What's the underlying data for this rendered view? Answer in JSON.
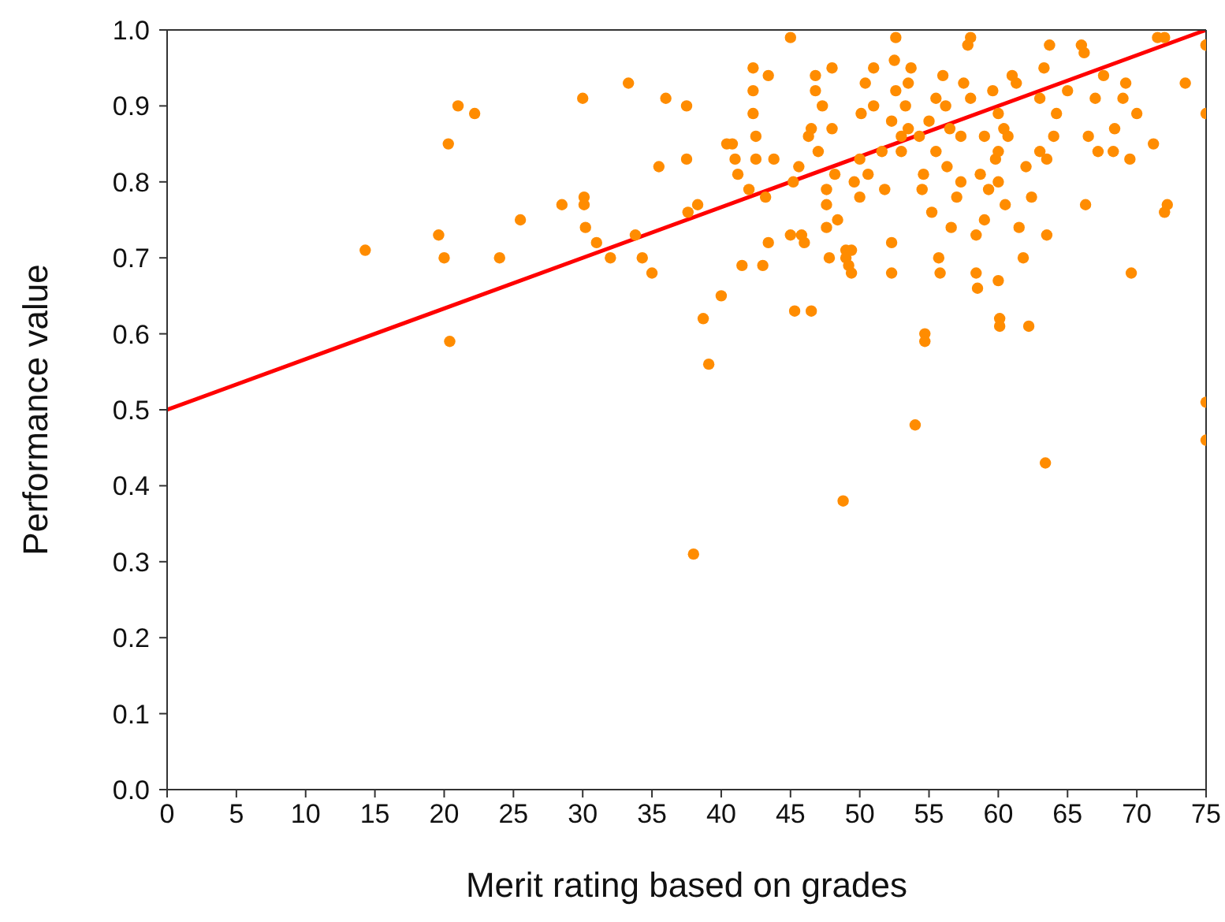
{
  "chart_data": {
    "type": "scatter",
    "xlabel": "Merit rating based on grades",
    "ylabel": "Performance value",
    "xlim": [
      0,
      75
    ],
    "ylim": [
      0,
      1
    ],
    "xticks": [
      0,
      5,
      10,
      15,
      20,
      25,
      30,
      35,
      40,
      45,
      50,
      55,
      60,
      65,
      70,
      75
    ],
    "yticks": [
      {
        "value": 0,
        "label": "0.0"
      },
      0.1,
      0.2,
      0.3,
      0.4,
      0.5,
      0.6,
      0.7,
      0.8,
      0.9,
      {
        "value": 1,
        "label": "1.0"
      }
    ],
    "grid": false,
    "legend": false,
    "marker": "circle",
    "series": [
      {
        "color": "#ff8c00",
        "x": [
          14.3,
          19.6,
          20,
          20.3,
          20.4,
          21,
          22.2,
          24,
          25.5,
          28.5,
          30,
          30.1,
          30.1,
          30.2,
          31,
          32,
          33.3,
          33.8,
          34.3,
          35,
          35.5,
          36,
          37.5,
          37.5,
          37.6,
          38,
          38.3,
          38.7,
          39.1,
          40,
          40.4,
          40.8,
          41,
          41.5,
          41.2,
          42,
          42.3,
          42.3,
          42.3,
          42.5,
          42.5,
          43,
          43.2,
          43.4,
          43.4,
          43.8,
          45,
          45,
          45.2,
          45.3,
          45.6,
          45.8,
          46,
          46.3,
          46.5,
          46.5,
          46.8,
          46.8,
          47,
          47.3,
          47.6,
          47.6,
          47.6,
          47.8,
          48,
          48,
          48.2,
          48.4,
          48.8,
          49,
          49,
          49.2,
          49.4,
          49.4,
          49.6,
          50,
          50,
          50.1,
          50.4,
          50.6,
          51,
          51,
          51.6,
          51.8,
          52.3,
          52.3,
          52.3,
          52.5,
          52.6,
          52.6,
          53,
          53,
          53.3,
          53.5,
          53.5,
          53.7,
          54,
          54.3,
          54.5,
          54.6,
          54.7,
          54.7,
          55,
          55.2,
          55.5,
          55.5,
          55.7,
          55.8,
          56,
          56.2,
          56.3,
          56.5,
          56.6,
          57,
          57.3,
          57.3,
          57.5,
          57.8,
          58,
          58,
          58.4,
          58.4,
          58.5,
          58.7,
          59,
          59,
          59.3,
          59.6,
          59.8,
          60,
          60,
          60,
          60,
          60.1,
          60.1,
          60.4,
          60.5,
          60.7,
          61,
          61.3,
          61.5,
          61.8,
          62,
          62.2,
          62.4,
          63,
          63,
          63.3,
          63.4,
          63.5,
          63.5,
          63.7,
          64,
          64.2,
          65,
          66,
          66.2,
          66.3,
          66.5,
          67,
          67.2,
          67.6,
          68.3,
          68.4,
          69,
          69.2,
          69.5,
          69.6,
          70,
          71.2,
          71.5,
          72,
          72,
          72.2,
          73.5,
          75,
          75,
          75,
          75,
          75
        ],
        "values": [
          0.71,
          0.73,
          0.7,
          0.85,
          0.59,
          0.9,
          0.89,
          0.7,
          0.75,
          0.77,
          0.91,
          0.78,
          0.77,
          0.74,
          0.72,
          0.7,
          0.93,
          0.73,
          0.7,
          0.68,
          0.82,
          0.91,
          0.9,
          0.83,
          0.76,
          0.31,
          0.77,
          0.62,
          0.56,
          0.65,
          0.85,
          0.85,
          0.83,
          0.69,
          0.81,
          0.79,
          0.95,
          0.92,
          0.89,
          0.86,
          0.83,
          0.69,
          0.78,
          0.72,
          0.94,
          0.83,
          0.99,
          0.73,
          0.8,
          0.63,
          0.82,
          0.73,
          0.72,
          0.86,
          0.63,
          0.87,
          0.92,
          0.94,
          0.84,
          0.9,
          0.79,
          0.77,
          0.74,
          0.7,
          0.95,
          0.87,
          0.81,
          0.75,
          0.38,
          0.71,
          0.7,
          0.69,
          0.71,
          0.68,
          0.8,
          0.83,
          0.78,
          0.89,
          0.93,
          0.81,
          0.9,
          0.95,
          0.84,
          0.79,
          0.88,
          0.72,
          0.68,
          0.96,
          0.92,
          0.99,
          0.84,
          0.86,
          0.9,
          0.93,
          0.87,
          0.95,
          0.48,
          0.86,
          0.79,
          0.81,
          0.6,
          0.59,
          0.88,
          0.76,
          0.84,
          0.91,
          0.7,
          0.68,
          0.94,
          0.9,
          0.82,
          0.87,
          0.74,
          0.78,
          0.86,
          0.8,
          0.93,
          0.98,
          0.99,
          0.91,
          0.73,
          0.68,
          0.66,
          0.81,
          0.86,
          0.75,
          0.79,
          0.92,
          0.83,
          0.89,
          0.84,
          0.8,
          0.67,
          0.62,
          0.61,
          0.87,
          0.77,
          0.86,
          0.94,
          0.93,
          0.74,
          0.7,
          0.82,
          0.61,
          0.78,
          0.91,
          0.84,
          0.95,
          0.43,
          0.73,
          0.83,
          0.98,
          0.86,
          0.89,
          0.92,
          0.98,
          0.97,
          0.77,
          0.86,
          0.91,
          0.84,
          0.94,
          0.84,
          0.87,
          0.91,
          0.93,
          0.83,
          0.68,
          0.89,
          0.85,
          0.99,
          0.99,
          0.76,
          0.77,
          0.93,
          0.98,
          0.98,
          0.89,
          0.51,
          0.46
        ]
      },
      {
        "type": "line",
        "color": "#ff0000",
        "x": [
          0,
          75
        ],
        "values": [
          0.5,
          1.0
        ],
        "marker": "none",
        "line_style": "solid"
      }
    ]
  }
}
